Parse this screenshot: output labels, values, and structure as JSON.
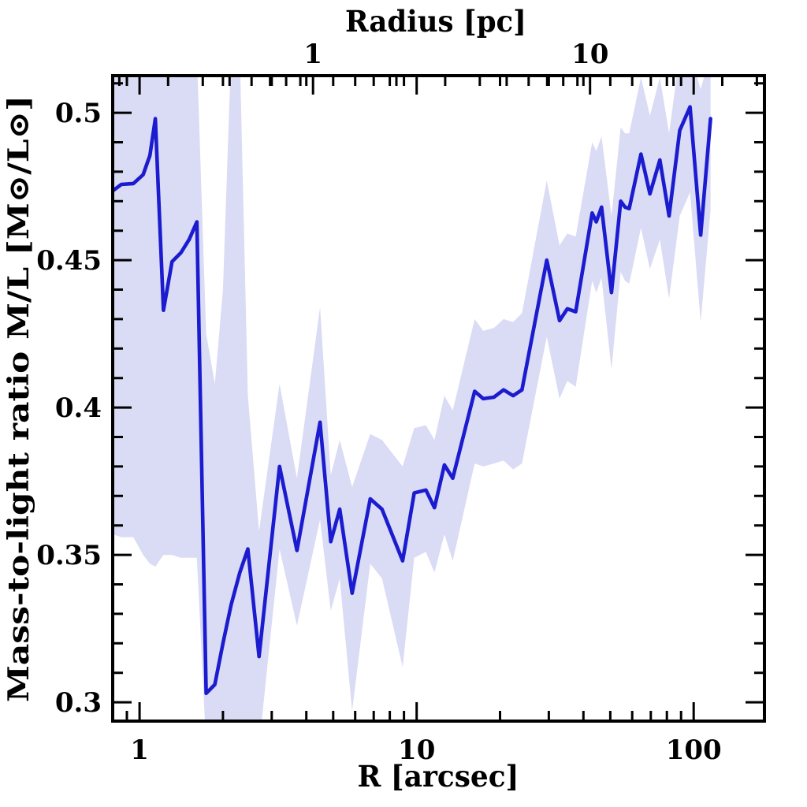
{
  "figure": {
    "background_color": "#ffffff",
    "frame_color": "#000000",
    "line_color": "#1b1bcf",
    "band_color": "#dadbf4",
    "text_color": "#000000"
  },
  "chart_data": {
    "type": "line",
    "title": "",
    "xlabel": "R [arcsec]",
    "top_xlabel": "Radius [pc]",
    "ylabel": "Mass-to-light ratio M/L [M⊙/L⊙]",
    "x_scale": "log",
    "grid": false,
    "legend": "none",
    "xlim": [
      0.8,
      180
    ],
    "ylim": [
      0.2936,
      0.5126
    ],
    "arcsec_to_pc": 0.2366,
    "x_major_ticks": [
      1,
      10,
      100
    ],
    "x_tick_labels": [
      "1",
      "10",
      "100"
    ],
    "x_minor_ticks": [
      0.9,
      2,
      3,
      4,
      5,
      6,
      7,
      8,
      9,
      20,
      30,
      40,
      50,
      60,
      70,
      80,
      90
    ],
    "top_major_ticks_pc": [
      1,
      10
    ],
    "top_tick_labels": [
      "1",
      "10"
    ],
    "top_minor_ticks_pc": [
      0.2,
      0.3,
      0.4,
      0.5,
      0.6,
      0.7,
      0.8,
      0.9,
      2,
      3,
      4,
      5,
      6,
      7,
      8,
      9,
      20,
      30,
      40
    ],
    "y_major_ticks": [
      0.3,
      0.35,
      0.4,
      0.45,
      0.5
    ],
    "y_tick_labels": [
      "0.3",
      "0.35",
      "0.4",
      "0.45",
      "0.5"
    ],
    "y_minor_step": 0.01,
    "series": [
      {
        "name": "mass-to-light ratio profile",
        "x": [
          0.8,
          0.86,
          0.95,
          1.03,
          1.09,
          1.14,
          1.22,
          1.31,
          1.41,
          1.51,
          1.61,
          1.74,
          1.87,
          2.0,
          2.14,
          2.3,
          2.46,
          2.7,
          3.2,
          3.7,
          4.48,
          4.9,
          5.28,
          5.85,
          6.8,
          7.5,
          8.9,
          9.8,
          10.8,
          11.6,
          12.6,
          13.5,
          16.2,
          17.4,
          19.0,
          20.6,
          22.3,
          24.0,
          29.5,
          32.8,
          35.0,
          37.5,
          43.0,
          44.5,
          46.5,
          50.5,
          54.5,
          56.5,
          58.5,
          64.5,
          69.5,
          75.5,
          81.5,
          89.0,
          97.0,
          106.0,
          115.0
        ],
        "y": [
          0.4735,
          0.4757,
          0.476,
          0.479,
          0.4855,
          0.498,
          0.433,
          0.4495,
          0.4525,
          0.457,
          0.463,
          0.303,
          0.306,
          0.32,
          0.333,
          0.344,
          0.352,
          0.3155,
          0.38,
          0.3515,
          0.395,
          0.3545,
          0.3655,
          0.337,
          0.369,
          0.3655,
          0.348,
          0.371,
          0.372,
          0.366,
          0.3805,
          0.376,
          0.4055,
          0.403,
          0.4035,
          0.406,
          0.404,
          0.406,
          0.45,
          0.4295,
          0.4335,
          0.4325,
          0.466,
          0.463,
          0.468,
          0.439,
          0.47,
          0.468,
          0.4675,
          0.486,
          0.4725,
          0.484,
          0.465,
          0.494,
          0.502,
          0.4585,
          0.498
        ]
      }
    ],
    "band": {
      "name": "uncertainty band",
      "lower": [
        0.357,
        0.356,
        0.356,
        0.35,
        0.347,
        0.346,
        0.35,
        0.35,
        0.349,
        0.349,
        0.349,
        0.285,
        0.285,
        0.285,
        0.285,
        0.285,
        0.285,
        0.285,
        0.352,
        0.326,
        0.362,
        0.331,
        0.342,
        0.297,
        0.347,
        0.342,
        0.312,
        0.349,
        0.351,
        0.344,
        0.357,
        0.348,
        0.381,
        0.38,
        0.381,
        0.382,
        0.379,
        0.381,
        0.424,
        0.403,
        0.409,
        0.407,
        0.443,
        0.439,
        0.444,
        0.413,
        0.446,
        0.443,
        0.442,
        0.461,
        0.447,
        0.457,
        0.437,
        0.465,
        0.473,
        0.429,
        0.467
      ],
      "upper": [
        0.52,
        0.52,
        0.52,
        0.52,
        0.52,
        0.52,
        0.52,
        0.52,
        0.52,
        0.52,
        0.52,
        0.425,
        0.408,
        0.44,
        0.52,
        0.52,
        0.404,
        0.358,
        0.408,
        0.376,
        0.434,
        0.377,
        0.389,
        0.373,
        0.391,
        0.389,
        0.38,
        0.393,
        0.394,
        0.389,
        0.404,
        0.399,
        0.43,
        0.426,
        0.427,
        0.43,
        0.429,
        0.432,
        0.477,
        0.455,
        0.459,
        0.458,
        0.49,
        0.487,
        0.492,
        0.465,
        0.495,
        0.493,
        0.493,
        0.512,
        0.499,
        0.512,
        0.493,
        0.52,
        0.52,
        0.508,
        0.52
      ]
    }
  }
}
